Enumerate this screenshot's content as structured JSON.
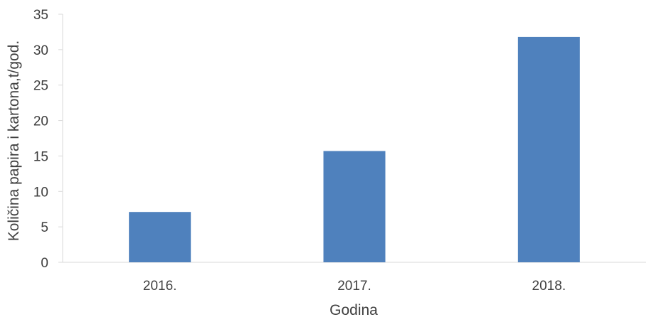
{
  "chart_data": {
    "type": "bar",
    "categories": [
      "2016.",
      "2017.",
      "2018."
    ],
    "values": [
      7.1,
      15.7,
      31.8
    ],
    "xlabel": "Godina",
    "ylabel": "Količina papira i kartona,t/god.",
    "ylim": [
      0,
      35
    ],
    "yticks": [
      0,
      5,
      10,
      15,
      20,
      25,
      30,
      35
    ],
    "grid": false,
    "legend": "none",
    "bar_color": "#4f81bd",
    "axis_color": "#d9d9d9",
    "text_color": "#404040"
  }
}
